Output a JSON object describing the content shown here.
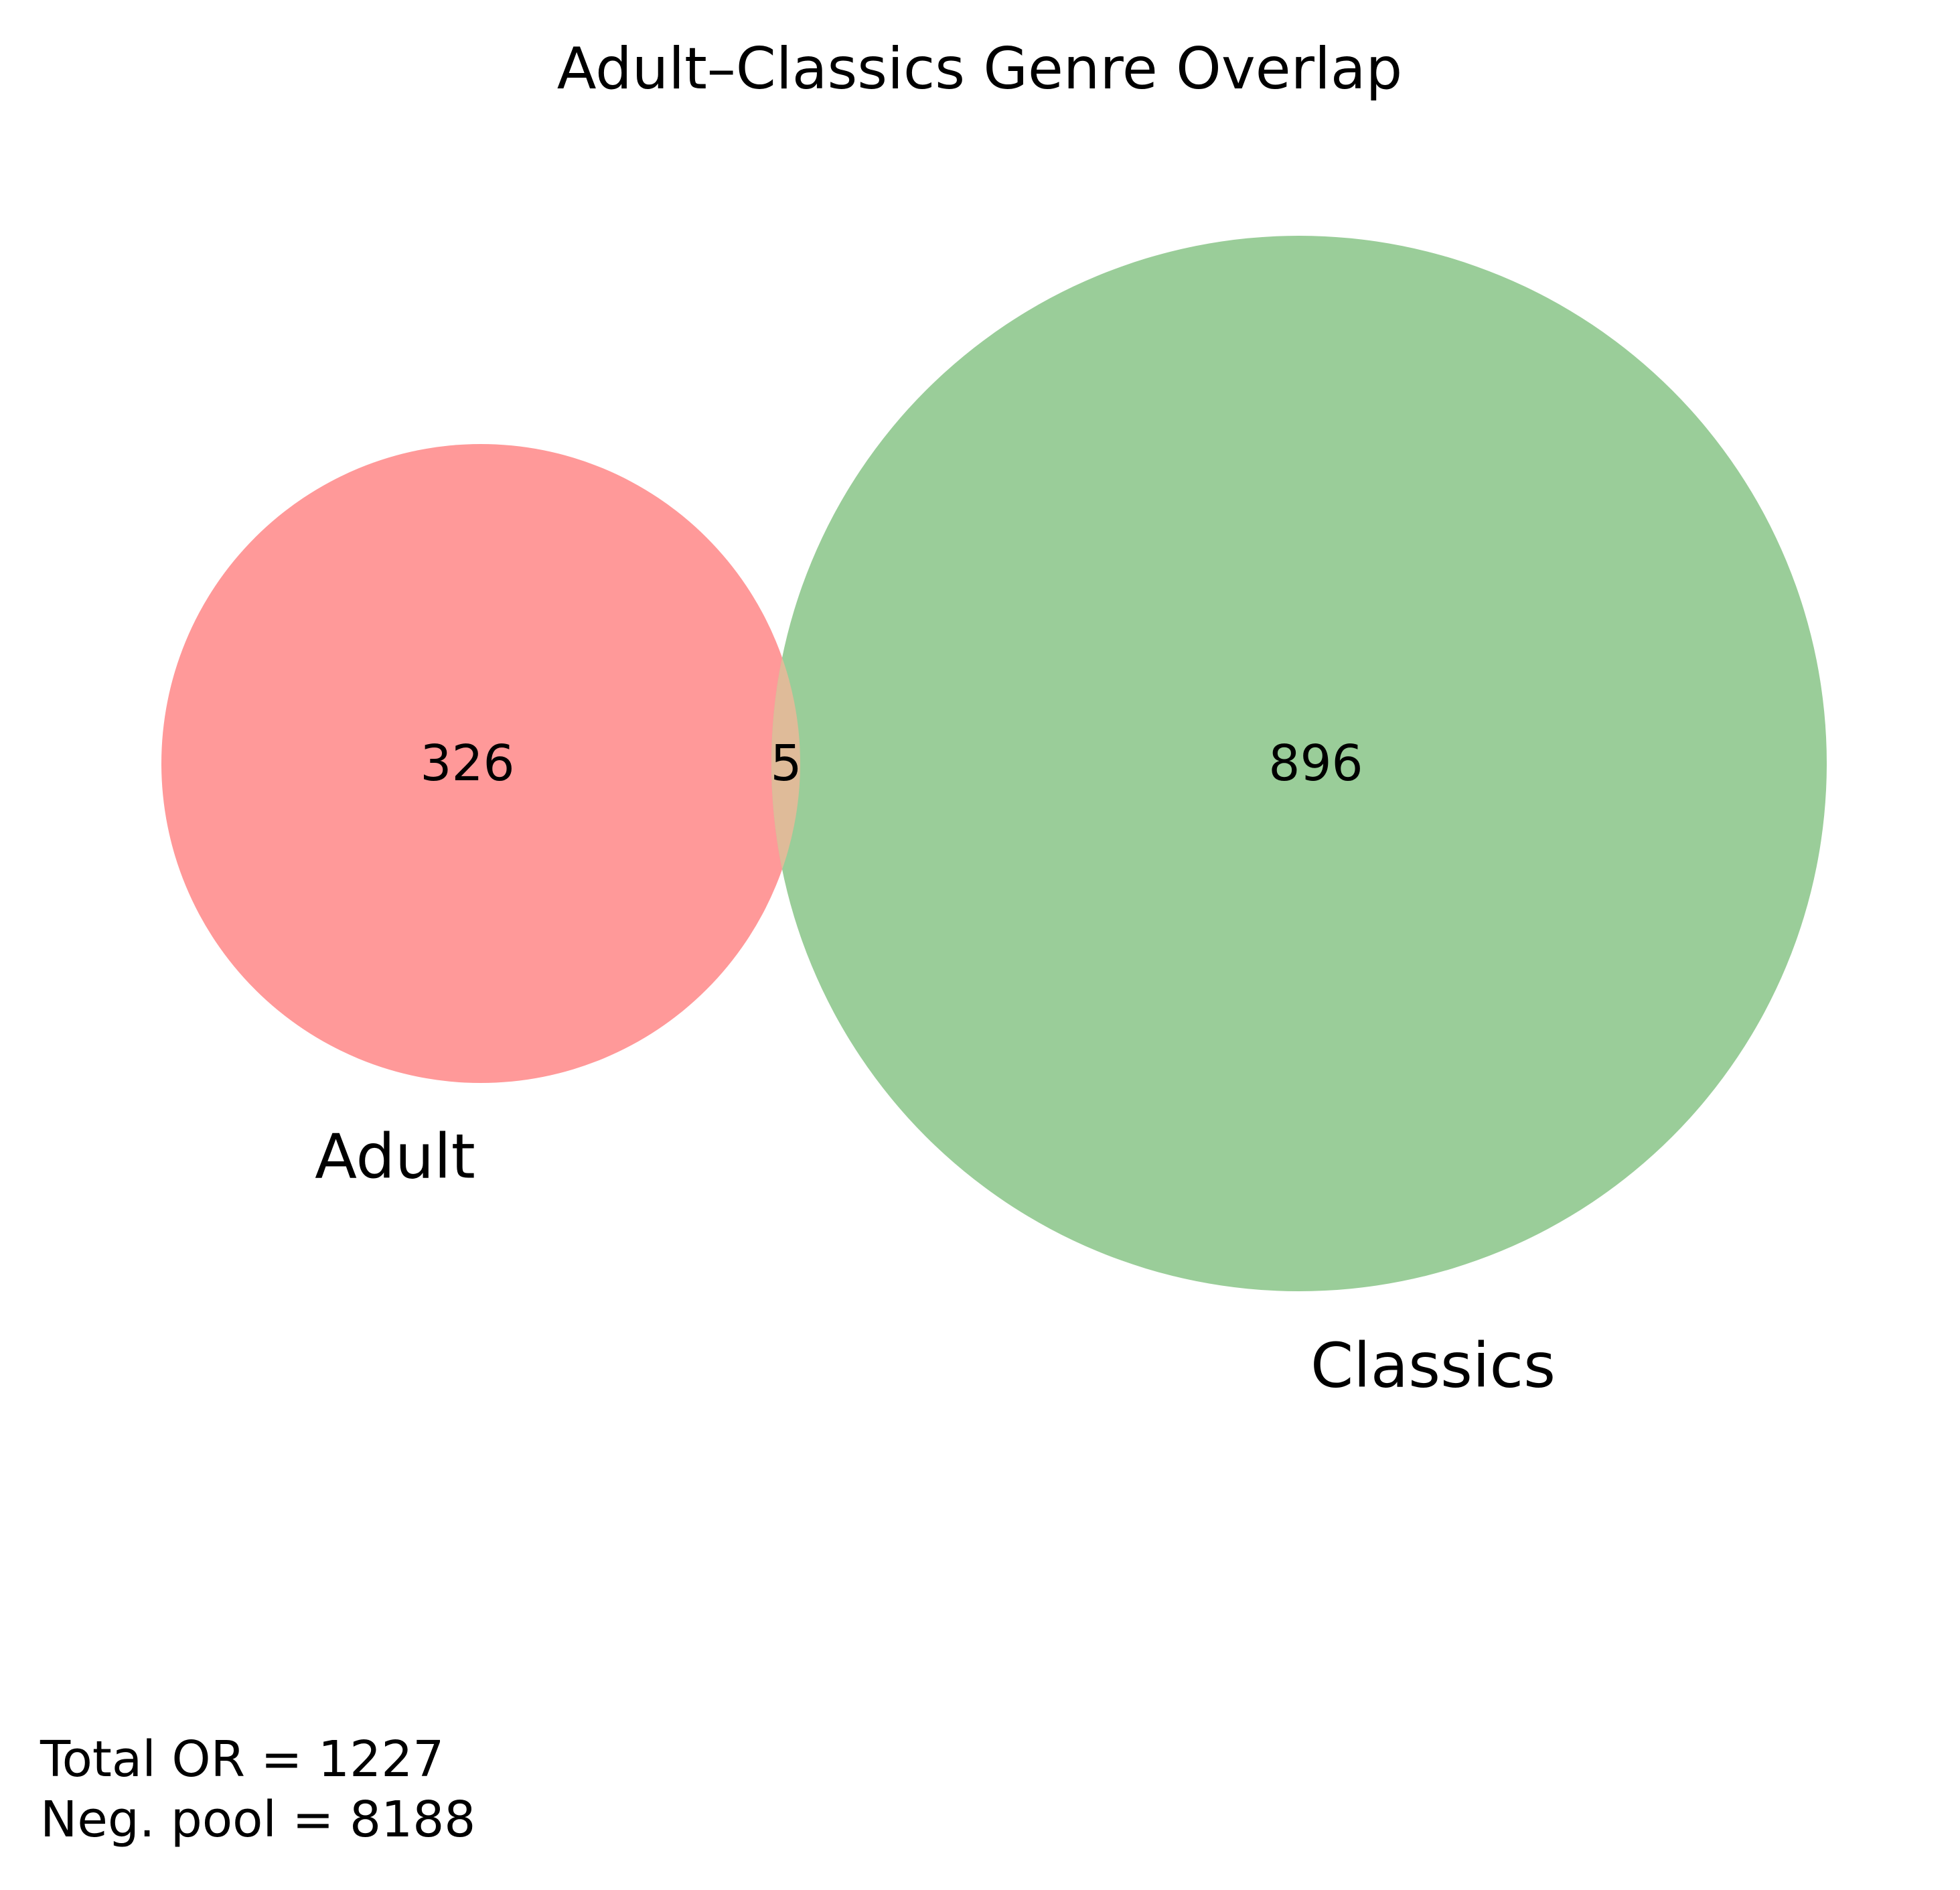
{
  "title": "Adult–Classics Genre Overlap",
  "sets": [
    {
      "name": "Adult",
      "only_count": 326,
      "color": "#ff9999"
    },
    {
      "name": "Classics",
      "only_count": 896,
      "color": "#9acd99"
    }
  ],
  "intersection": {
    "count": 5,
    "color": "#dfbb99"
  },
  "footnotes": [
    "Total OR = 1227",
    "Neg. pool = 8188"
  ],
  "chart_data": {
    "type": "venn",
    "title": "Adult–Classics Genre Overlap",
    "sets": [
      "Adult",
      "Classics"
    ],
    "regions": [
      {
        "sets": [
          "Adult"
        ],
        "value": 326
      },
      {
        "sets": [
          "Adult",
          "Classics"
        ],
        "value": 5
      },
      {
        "sets": [
          "Classics"
        ],
        "value": 896
      }
    ],
    "annotations": [
      "Total OR = 1227",
      "Neg. pool = 8188"
    ]
  }
}
